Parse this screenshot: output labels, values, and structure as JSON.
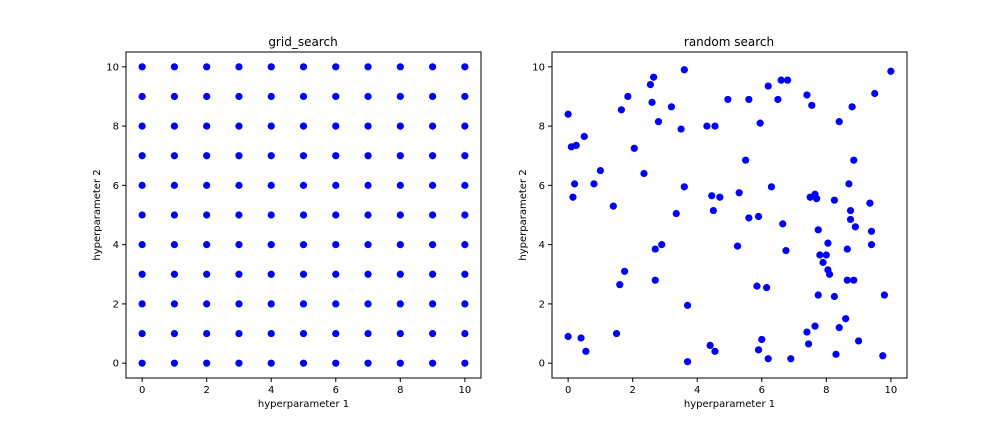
{
  "figure": {
    "background": "#ffffff"
  },
  "chart_data": [
    {
      "type": "scatter",
      "title": "grid_search",
      "xlabel": "hyperparameter 1",
      "ylabel": "hyperparameter 2",
      "xlim": [
        -0.5,
        10.5
      ],
      "ylim": [
        -0.5,
        10.5
      ],
      "xticks": [
        0,
        2,
        4,
        6,
        8,
        10
      ],
      "yticks": [
        0,
        2,
        4,
        6,
        8,
        10
      ],
      "grid": false,
      "marker_color": "#0000ff",
      "grid_points": {
        "x_values": [
          0,
          1,
          2,
          3,
          4,
          5,
          6,
          7,
          8,
          9,
          10
        ],
        "y_values": [
          0,
          1,
          2,
          3,
          4,
          5,
          6,
          7,
          8,
          9,
          10
        ]
      }
    },
    {
      "type": "scatter",
      "title": "random search",
      "xlabel": "hyperparameter 1",
      "ylabel": "hyperparameter 2",
      "xlim": [
        -0.5,
        10.5
      ],
      "ylim": [
        -0.5,
        10.5
      ],
      "xticks": [
        0,
        2,
        4,
        6,
        8,
        10
      ],
      "yticks": [
        0,
        2,
        4,
        6,
        8,
        10
      ],
      "grid": false,
      "marker_color": "#0000ff",
      "points": [
        [
          0.0,
          8.4
        ],
        [
          0.1,
          7.3
        ],
        [
          0.25,
          7.35
        ],
        [
          0.5,
          7.65
        ],
        [
          0.2,
          6.05
        ],
        [
          0.15,
          5.6
        ],
        [
          0.8,
          6.05
        ],
        [
          1.0,
          6.5
        ],
        [
          0.0,
          0.9
        ],
        [
          0.4,
          0.85
        ],
        [
          0.55,
          0.4
        ],
        [
          1.5,
          1.0
        ],
        [
          1.6,
          2.65
        ],
        [
          1.75,
          3.1
        ],
        [
          1.4,
          5.3
        ],
        [
          1.65,
          8.55
        ],
        [
          1.85,
          9.0
        ],
        [
          2.05,
          7.25
        ],
        [
          2.35,
          6.4
        ],
        [
          2.55,
          9.4
        ],
        [
          2.65,
          9.65
        ],
        [
          2.6,
          8.8
        ],
        [
          2.8,
          8.15
        ],
        [
          3.2,
          8.65
        ],
        [
          3.5,
          7.9
        ],
        [
          3.6,
          9.9
        ],
        [
          3.6,
          5.95
        ],
        [
          3.35,
          5.05
        ],
        [
          2.9,
          4.0
        ],
        [
          2.7,
          3.85
        ],
        [
          2.7,
          2.8
        ],
        [
          3.7,
          1.95
        ],
        [
          3.7,
          0.05
        ],
        [
          4.3,
          8.0
        ],
        [
          4.55,
          8.0
        ],
        [
          4.45,
          5.65
        ],
        [
          4.7,
          5.6
        ],
        [
          4.5,
          5.15
        ],
        [
          4.4,
          0.6
        ],
        [
          4.55,
          0.4
        ],
        [
          4.95,
          8.9
        ],
        [
          5.3,
          5.75
        ],
        [
          5.5,
          6.85
        ],
        [
          5.6,
          8.9
        ],
        [
          5.6,
          4.9
        ],
        [
          5.9,
          4.95
        ],
        [
          5.25,
          3.95
        ],
        [
          5.95,
          8.1
        ],
        [
          6.2,
          9.35
        ],
        [
          6.5,
          8.9
        ],
        [
          6.6,
          9.55
        ],
        [
          6.8,
          9.55
        ],
        [
          6.3,
          5.95
        ],
        [
          6.65,
          4.7
        ],
        [
          6.75,
          3.8
        ],
        [
          5.85,
          2.6
        ],
        [
          6.15,
          2.55
        ],
        [
          6.0,
          0.8
        ],
        [
          5.9,
          0.45
        ],
        [
          6.2,
          0.15
        ],
        [
          6.9,
          0.15
        ],
        [
          7.4,
          9.05
        ],
        [
          7.55,
          8.7
        ],
        [
          7.5,
          5.6
        ],
        [
          7.65,
          5.7
        ],
        [
          7.7,
          5.55
        ],
        [
          7.75,
          4.5
        ],
        [
          7.8,
          3.65
        ],
        [
          8.0,
          3.65
        ],
        [
          7.9,
          3.4
        ],
        [
          8.05,
          4.05
        ],
        [
          8.05,
          3.15
        ],
        [
          8.1,
          3.0
        ],
        [
          8.25,
          5.5
        ],
        [
          7.75,
          2.3
        ],
        [
          8.25,
          2.25
        ],
        [
          7.65,
          1.25
        ],
        [
          7.4,
          1.05
        ],
        [
          7.45,
          0.65
        ],
        [
          8.3,
          0.3
        ],
        [
          8.4,
          8.15
        ],
        [
          8.4,
          1.2
        ],
        [
          8.6,
          1.5
        ],
        [
          8.65,
          3.85
        ],
        [
          8.7,
          6.05
        ],
        [
          8.75,
          5.15
        ],
        [
          8.75,
          4.85
        ],
        [
          8.8,
          8.65
        ],
        [
          8.85,
          6.85
        ],
        [
          8.9,
          4.6
        ],
        [
          8.65,
          2.8
        ],
        [
          8.85,
          2.8
        ],
        [
          9.0,
          0.75
        ],
        [
          9.35,
          5.4
        ],
        [
          9.4,
          4.45
        ],
        [
          9.4,
          4.0
        ],
        [
          9.5,
          9.1
        ],
        [
          9.75,
          0.25
        ],
        [
          9.8,
          2.3
        ],
        [
          10.0,
          9.85
        ]
      ]
    }
  ]
}
